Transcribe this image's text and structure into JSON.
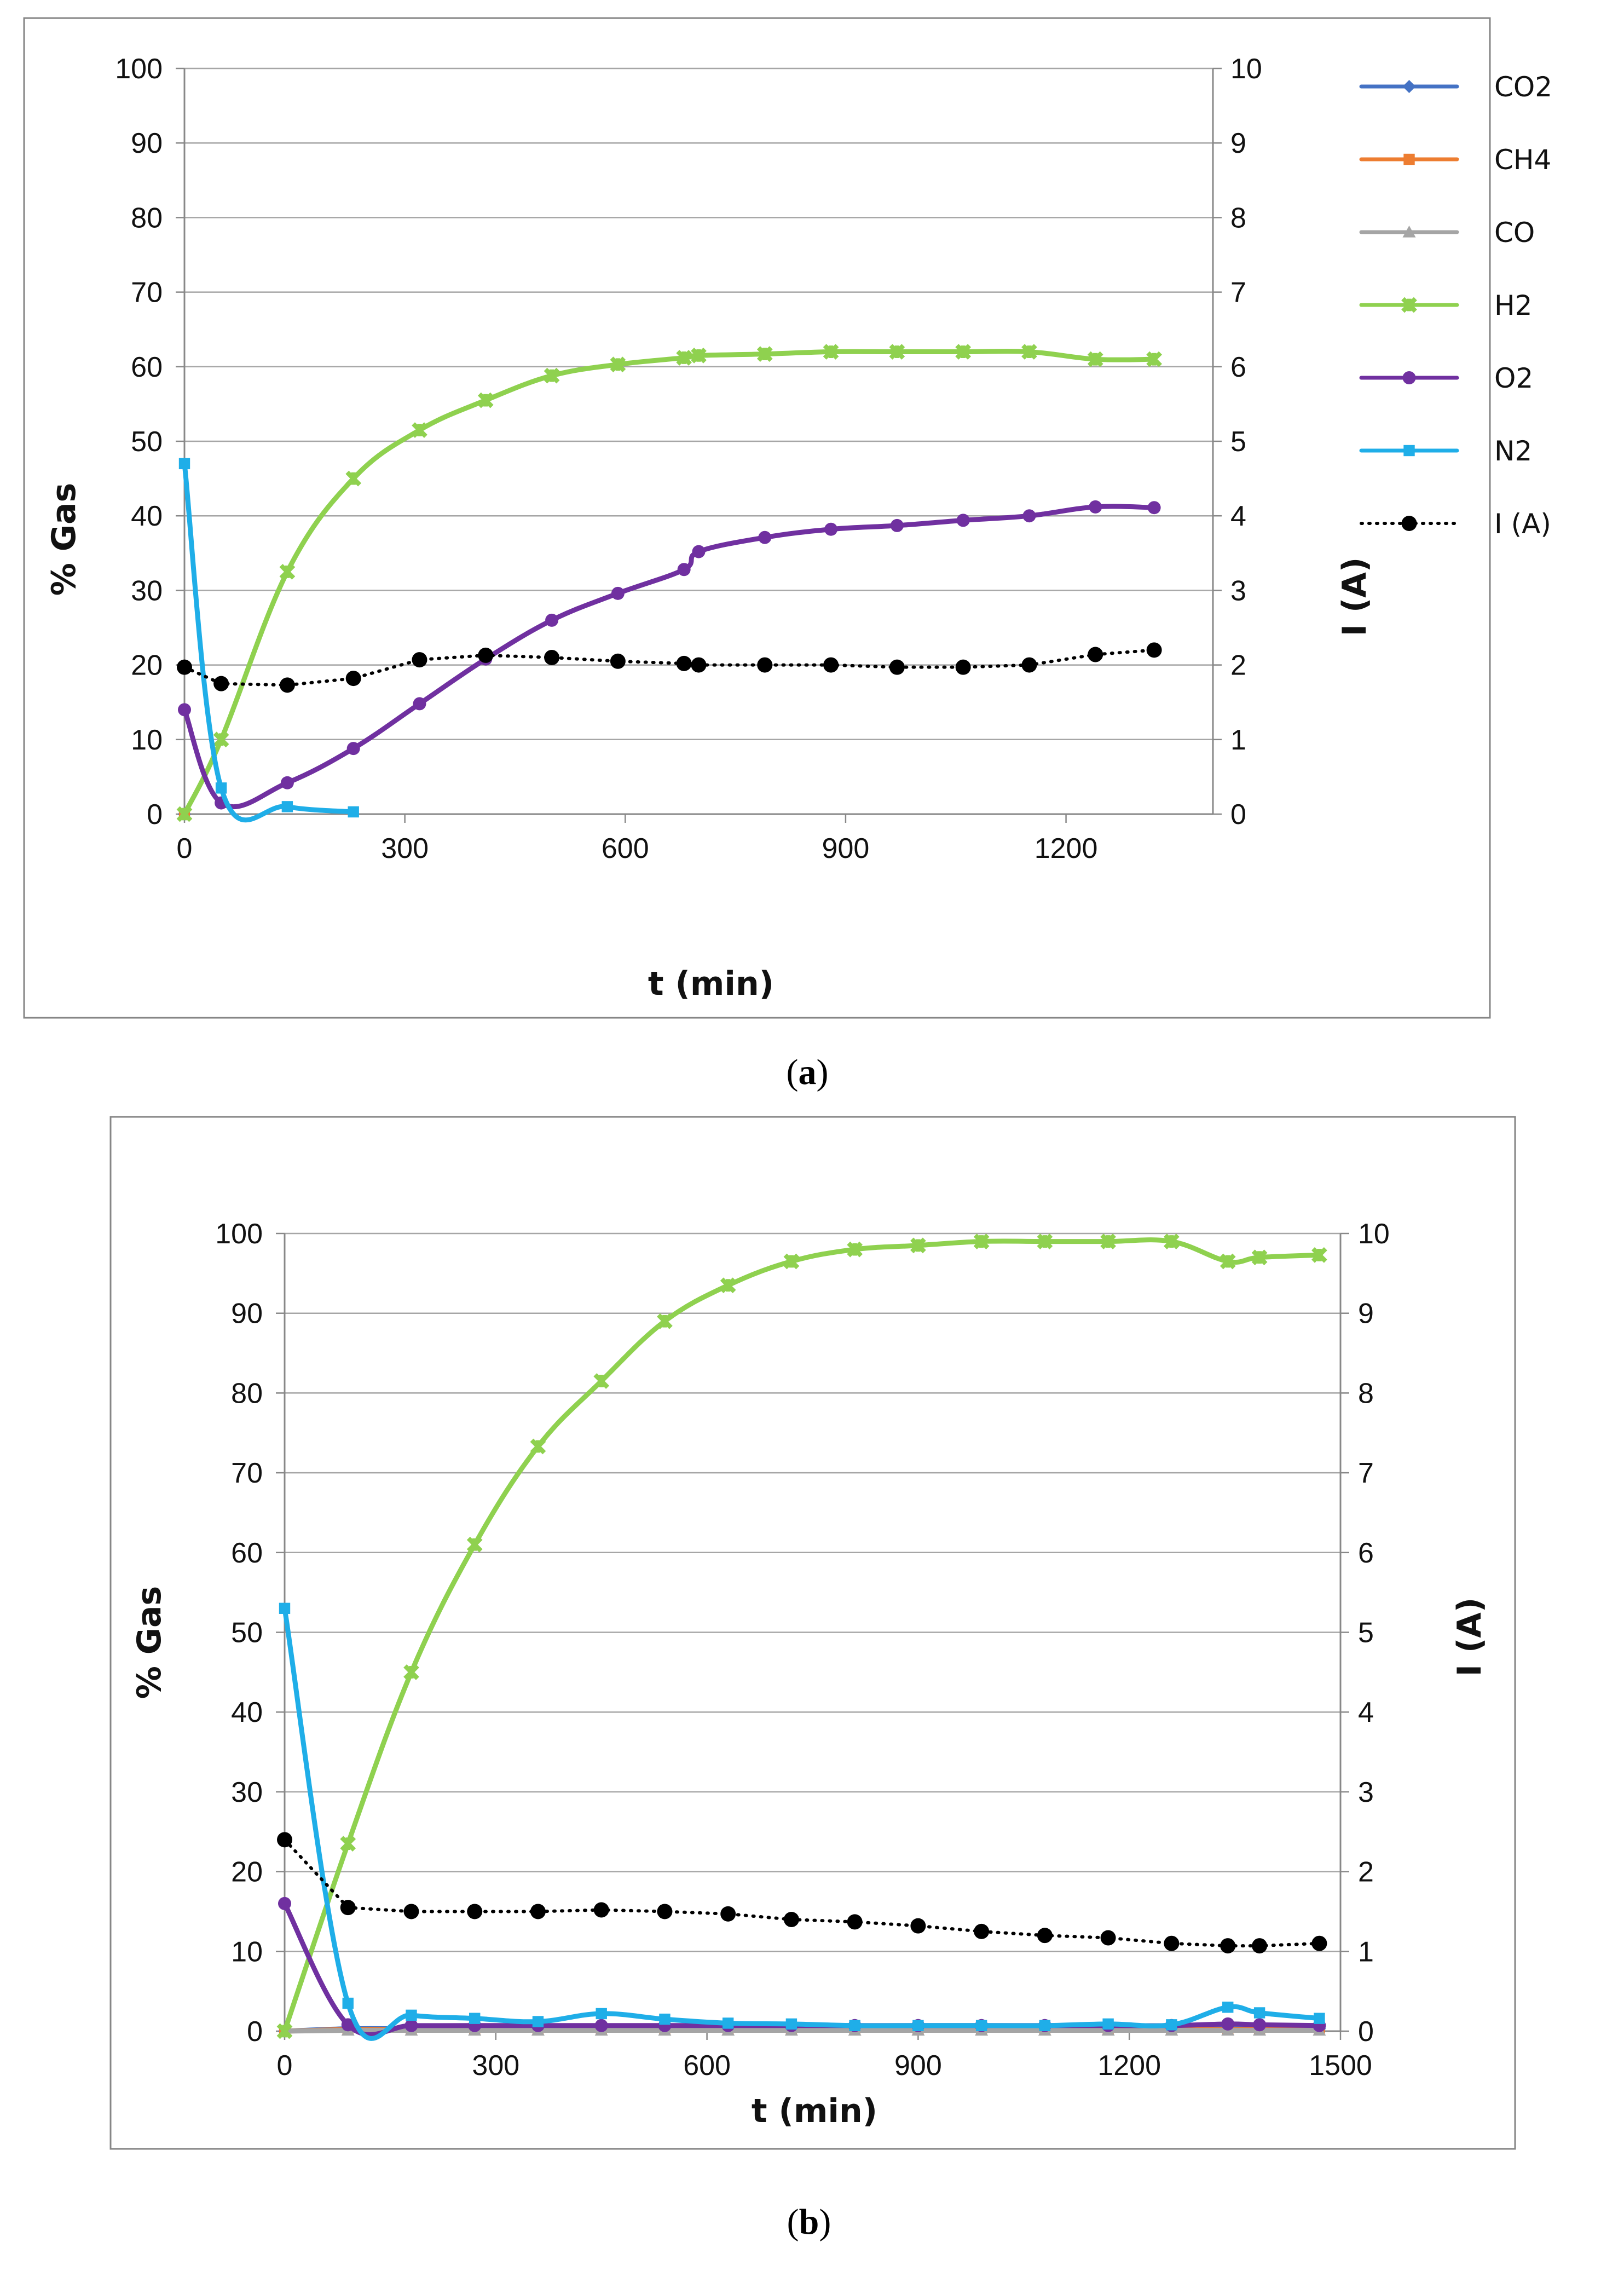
{
  "colors": {
    "CO2": "#4472C4",
    "CH4": "#ED7D31",
    "CO": "#A5A5A5",
    "H2": "#8FD14F",
    "O2": "#7030A0",
    "N2": "#1FAEE8",
    "I": "#000000",
    "grid": "#A6A6A6",
    "axis": "#888888",
    "frame": "#868686"
  },
  "chart_data": [
    {
      "type": "line",
      "panel": "a",
      "caption_letter": "a",
      "caption_open": "(",
      "caption_close": ")",
      "xlabel": "t (min)",
      "ylabel": "% Gas",
      "y2label": "I (A)",
      "xlim": [
        0,
        1400
      ],
      "xticks": [
        0,
        300,
        600,
        900,
        1200
      ],
      "ylim": [
        0,
        100
      ],
      "yticks": [
        0,
        10,
        20,
        30,
        40,
        50,
        60,
        70,
        80,
        90,
        100
      ],
      "y2lim": [
        0,
        10
      ],
      "y2ticks": [
        0,
        1,
        2,
        3,
        4,
        5,
        6,
        7,
        8,
        9,
        10
      ],
      "grid": true,
      "legend_position": "right",
      "series": [
        {
          "name": "CO2",
          "axis": "left",
          "marker": "diamond",
          "smooth": true,
          "x": [
            0
          ],
          "values": [
            0
          ]
        },
        {
          "name": "CH4",
          "axis": "left",
          "marker": "square",
          "smooth": true,
          "x": [
            0
          ],
          "values": [
            0
          ]
        },
        {
          "name": "CO",
          "axis": "left",
          "marker": "triangle",
          "smooth": true,
          "x": [
            0
          ],
          "values": [
            0
          ]
        },
        {
          "name": "H2",
          "axis": "left",
          "marker": "star",
          "smooth": true,
          "x": [
            0,
            50,
            140,
            230,
            320,
            410,
            500,
            590,
            680,
            700,
            790,
            880,
            970,
            1060,
            1150,
            1240,
            1320
          ],
          "values": [
            0,
            10,
            32.5,
            45,
            51.5,
            55.5,
            58.8,
            60.3,
            61.2,
            61.5,
            61.7,
            62,
            62,
            62,
            62,
            61,
            61
          ]
        },
        {
          "name": "O2",
          "axis": "left",
          "marker": "circle",
          "smooth": true,
          "x": [
            0,
            50,
            140,
            230,
            320,
            410,
            500,
            590,
            680,
            700,
            790,
            880,
            970,
            1060,
            1150,
            1240,
            1320
          ],
          "values": [
            14,
            1.5,
            4.2,
            8.8,
            14.8,
            20.8,
            26,
            29.6,
            32.8,
            35.2,
            37.1,
            38.2,
            38.7,
            39.4,
            40,
            41.2,
            41.1
          ]
        },
        {
          "name": "N2",
          "axis": "left",
          "marker": "square",
          "smooth": true,
          "x": [
            0,
            50,
            140,
            230
          ],
          "values": [
            47,
            3.5,
            1,
            0.3
          ]
        },
        {
          "name": "I (A)",
          "axis": "right",
          "marker": "circle",
          "dotted": true,
          "smooth": false,
          "x": [
            0,
            50,
            140,
            230,
            320,
            410,
            500,
            590,
            680,
            700,
            790,
            880,
            970,
            1060,
            1150,
            1240,
            1320
          ],
          "values": [
            1.97,
            1.75,
            1.73,
            1.82,
            2.07,
            2.13,
            2.1,
            2.05,
            2.02,
            2,
            2,
            2,
            1.97,
            1.97,
            2,
            2.14,
            2.2
          ]
        }
      ]
    },
    {
      "type": "line",
      "panel": "b",
      "caption_letter": "b",
      "caption_open": "(",
      "caption_close": ")",
      "xlabel": "t (min)",
      "ylabel": "% Gas",
      "y2label": "I (A)",
      "xlim": [
        0,
        1500
      ],
      "xticks": [
        0,
        300,
        600,
        900,
        1200,
        1500
      ],
      "ylim": [
        0,
        100
      ],
      "yticks": [
        0,
        10,
        20,
        30,
        40,
        50,
        60,
        70,
        80,
        90,
        100
      ],
      "y2lim": [
        0,
        10
      ],
      "y2ticks": [
        0,
        1,
        2,
        3,
        4,
        5,
        6,
        7,
        8,
        9,
        10
      ],
      "grid": true,
      "series": [
        {
          "name": "CO2",
          "axis": "left",
          "marker": "diamond",
          "smooth": true,
          "x": [
            0,
            90,
            180,
            270,
            360,
            450,
            540,
            630,
            720,
            810,
            900,
            990,
            1080,
            1170,
            1260,
            1340,
            1385,
            1470
          ],
          "values": [
            0,
            0.3,
            0.3,
            0.3,
            0.3,
            0.3,
            0.3,
            0.3,
            0.3,
            0.3,
            0.3,
            0.3,
            0.3,
            0.3,
            0.3,
            0.3,
            0.3,
            0.3
          ]
        },
        {
          "name": "CH4",
          "axis": "left",
          "marker": "square",
          "smooth": true,
          "x": [
            0,
            90,
            180,
            270,
            360,
            450,
            540,
            630,
            720,
            810,
            900,
            990,
            1080,
            1170,
            1260,
            1340,
            1385,
            1470
          ],
          "values": [
            0,
            0.2,
            0.2,
            0.2,
            0.2,
            0.2,
            0.2,
            0.2,
            0.2,
            0.2,
            0.2,
            0.2,
            0.2,
            0.2,
            0.2,
            0.2,
            0.2,
            0.2
          ]
        },
        {
          "name": "CO",
          "axis": "left",
          "marker": "triangle",
          "smooth": true,
          "x": [
            0,
            90,
            180,
            270,
            360,
            450,
            540,
            630,
            720,
            810,
            900,
            990,
            1080,
            1170,
            1260,
            1340,
            1385,
            1470
          ],
          "values": [
            0,
            0.1,
            0.1,
            0.1,
            0.1,
            0.1,
            0.1,
            0.1,
            0.1,
            0.1,
            0.1,
            0.1,
            0.1,
            0.1,
            0.1,
            0.1,
            0.1,
            0.1
          ]
        },
        {
          "name": "H2",
          "axis": "left",
          "marker": "star",
          "smooth": true,
          "x": [
            0,
            90,
            180,
            270,
            360,
            450,
            540,
            630,
            720,
            810,
            900,
            990,
            1080,
            1170,
            1260,
            1340,
            1385,
            1470
          ],
          "values": [
            0,
            23.5,
            45,
            61,
            73.3,
            81.5,
            89,
            93.5,
            96.5,
            98,
            98.5,
            99,
            99,
            99,
            99,
            96.5,
            97,
            97.3
          ]
        },
        {
          "name": "O2",
          "axis": "left",
          "marker": "circle",
          "smooth": true,
          "x": [
            0,
            90,
            180,
            270,
            360,
            450,
            540,
            630,
            720,
            810,
            900,
            990,
            1080,
            1170,
            1260,
            1340,
            1385,
            1470
          ],
          "values": [
            16,
            0.8,
            0.7,
            0.7,
            0.7,
            0.7,
            0.7,
            0.7,
            0.7,
            0.7,
            0.7,
            0.7,
            0.7,
            0.7,
            0.7,
            0.9,
            0.8,
            0.7
          ]
        },
        {
          "name": "N2",
          "axis": "left",
          "marker": "square",
          "smooth": true,
          "x": [
            0,
            90,
            180,
            270,
            360,
            450,
            540,
            630,
            720,
            810,
            900,
            990,
            1080,
            1170,
            1260,
            1340,
            1385,
            1470
          ],
          "values": [
            53,
            3.5,
            2,
            1.6,
            1.2,
            2.2,
            1.5,
            1,
            0.9,
            0.7,
            0.7,
            0.7,
            0.7,
            0.9,
            0.8,
            3,
            2.3,
            1.6
          ]
        },
        {
          "name": "I (A)",
          "axis": "right",
          "marker": "circle",
          "dotted": true,
          "smooth": false,
          "x": [
            0,
            90,
            180,
            270,
            360,
            450,
            540,
            630,
            720,
            810,
            900,
            990,
            1080,
            1170,
            1260,
            1340,
            1385,
            1470
          ],
          "values": [
            2.4,
            1.55,
            1.5,
            1.5,
            1.5,
            1.52,
            1.5,
            1.47,
            1.4,
            1.37,
            1.32,
            1.25,
            1.2,
            1.17,
            1.1,
            1.07,
            1.07,
            1.1
          ]
        }
      ]
    }
  ]
}
